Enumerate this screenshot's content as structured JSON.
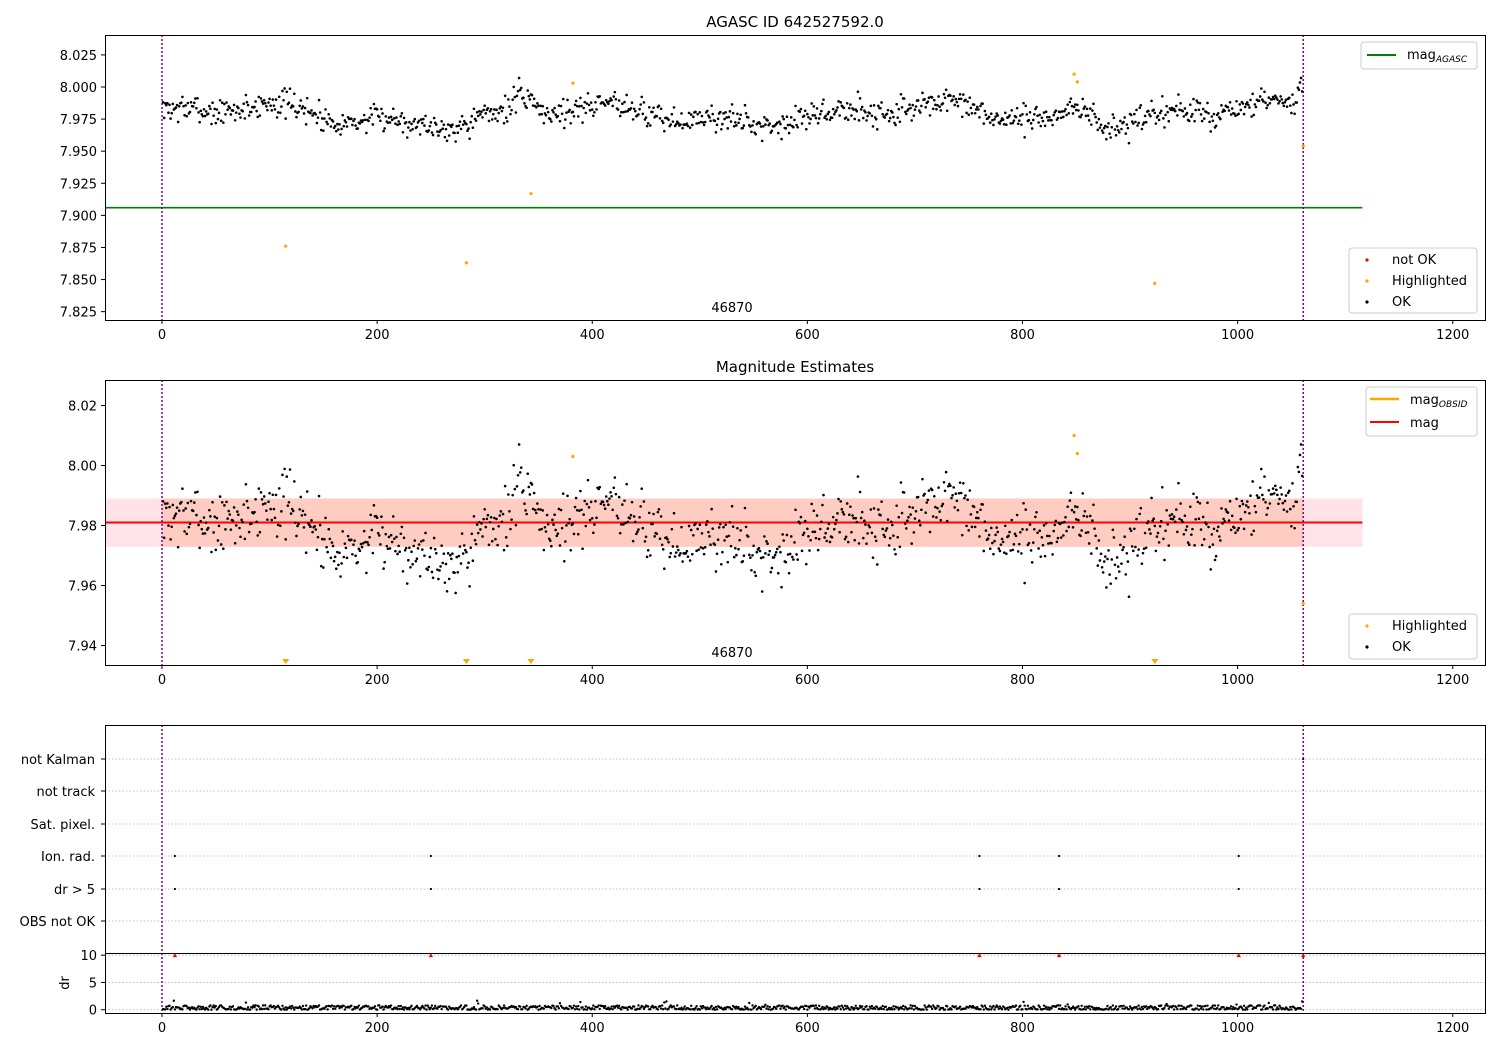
{
  "chart_data": [
    {
      "type": "scatter",
      "title": "AGASC ID 642527592.0",
      "xlabel": "",
      "ylabel": "",
      "xlim": [
        -53,
        1230
      ],
      "ylim": [
        7.8185,
        8.0405
      ],
      "xticks": [
        0,
        200,
        400,
        600,
        800,
        1000,
        1200
      ],
      "xtick_labels": [
        "0",
        "200",
        "400",
        "600",
        "800",
        "1000",
        "1200"
      ],
      "yticks": [
        7.825,
        7.85,
        7.875,
        7.9,
        7.925,
        7.95,
        7.975,
        8.0,
        8.025
      ],
      "ytick_labels": [
        "7.825",
        "7.850",
        "7.875",
        "7.900",
        "7.925",
        "7.950",
        "7.975",
        "8.000",
        "8.025"
      ],
      "vlines": [
        0,
        1061
      ],
      "vline_color": "#800080",
      "annotation": "46870",
      "annotation_x": 530,
      "grid": false,
      "lines": [
        {
          "name": "mag",
          "subscript": "AGASC",
          "y": 7.906,
          "x_range": [
            -53,
            1116
          ],
          "color": "#008000"
        }
      ],
      "legends": [
        {
          "placement": "top-right",
          "entries": [
            {
              "label": "mag",
              "sub": "AGASC",
              "kind": "line",
              "color": "#008000"
            }
          ]
        },
        {
          "placement": "bottom-right",
          "entries": [
            {
              "label": "not OK",
              "kind": "dot",
              "color": "#ff0000"
            },
            {
              "label": "Highlighted",
              "kind": "dot",
              "color": "#ffa500"
            },
            {
              "label": "OK",
              "kind": "dot",
              "color": "#000000"
            }
          ]
        }
      ],
      "series": [
        {
          "name": "OK",
          "color": "#000000",
          "model": "mag_baseline",
          "n": 1060,
          "x_range": [
            1,
            1060
          ]
        },
        {
          "name": "Highlighted",
          "color": "#ffa500",
          "x": [
            115,
            283,
            343,
            382,
            848,
            851,
            923,
            1061
          ],
          "y": [
            7.876,
            7.863,
            7.917,
            8.003,
            8.01,
            8.004,
            7.847,
            7.954
          ]
        }
      ]
    },
    {
      "type": "scatter",
      "title": "Magnitude Estimates",
      "xlabel": "",
      "ylabel": "",
      "xlim": [
        -53,
        1230
      ],
      "ylim": [
        7.9335,
        8.0285
      ],
      "xticks": [
        0,
        200,
        400,
        600,
        800,
        1000,
        1200
      ],
      "xtick_labels": [
        "0",
        "200",
        "400",
        "600",
        "800",
        "1000",
        "1200"
      ],
      "yticks": [
        7.94,
        7.96,
        7.98,
        8.0,
        8.02
      ],
      "ytick_labels": [
        "7.94",
        "7.96",
        "7.98",
        "8.00",
        "8.02"
      ],
      "vlines": [
        0,
        1061
      ],
      "vline_color": "#800080",
      "annotation": "46870",
      "annotation_x": 530,
      "grid": false,
      "bands": [
        {
          "y_range": [
            7.9729,
            7.989
          ],
          "x_range": [
            -53,
            1116
          ],
          "color": "#ffc0cb",
          "opacity": 0.45
        },
        {
          "y_range": [
            7.9729,
            7.989
          ],
          "x_range": [
            0,
            1061
          ],
          "color": "#ffa07a",
          "opacity": 0.35
        }
      ],
      "lines": [
        {
          "name": "mag",
          "y": 7.981,
          "x_range": [
            -53,
            1116
          ],
          "color": "#ff0000"
        }
      ],
      "outlier_markers": {
        "x": [
          115,
          283,
          343,
          923
        ],
        "color": "#ffa500",
        "shape": "triangle-down"
      },
      "legends": [
        {
          "placement": "top-right",
          "entries": [
            {
              "label": "mag",
              "sub": "OBSID",
              "kind": "line",
              "color": "#ffa500"
            },
            {
              "label": "mag",
              "kind": "line",
              "color": "#ff0000"
            }
          ]
        },
        {
          "placement": "bottom-right",
          "entries": [
            {
              "label": "Highlighted",
              "kind": "dot",
              "color": "#ffa500"
            },
            {
              "label": "OK",
              "kind": "dot",
              "color": "#000000"
            }
          ]
        }
      ],
      "series": [
        {
          "name": "OK",
          "color": "#000000",
          "model": "mag_baseline",
          "n": 1060,
          "x_range": [
            1,
            1060
          ]
        },
        {
          "name": "Highlighted",
          "color": "#ffa500",
          "x": [
            382,
            848,
            851,
            1061
          ],
          "y": [
            8.003,
            8.01,
            8.004,
            7.954
          ]
        }
      ]
    },
    {
      "type": "scatter",
      "title": "",
      "xlabel": "",
      "ylabel": "",
      "xlim": [
        -53,
        1230
      ],
      "categories": [
        "not Kalman",
        "not track",
        "Sat. pixel.",
        "Ion. rad.",
        "dr > 5",
        "OBS not OK"
      ],
      "grid": true,
      "vlines": [
        0,
        1061
      ],
      "vline_color": "#800080",
      "series": [
        {
          "name": "Ion. rad.",
          "x": [
            12,
            250,
            760,
            834,
            1001
          ]
        },
        {
          "name": "dr > 5",
          "x": [
            12,
            250,
            760,
            834,
            1001
          ]
        },
        {
          "name": "not Kalman",
          "x": [
            1061
          ]
        }
      ]
    },
    {
      "type": "scatter",
      "title": "",
      "xlabel": "",
      "ylabel": "dr",
      "xlim": [
        -53,
        1230
      ],
      "ylim": [
        -0.6,
        10.4
      ],
      "yticks": [
        0,
        5,
        10
      ],
      "ytick_labels": [
        "0",
        "5",
        "10"
      ],
      "xticks": [
        0,
        200,
        400,
        600,
        800,
        1000,
        1200
      ],
      "xtick_labels": [
        "0",
        "200",
        "400",
        "600",
        "800",
        "1000",
        "1200"
      ],
      "grid": true,
      "vlines": [
        0,
        1061
      ],
      "vline_color": "#800080",
      "series": [
        {
          "name": "dr",
          "color": "#000000",
          "model": "dr_noise",
          "n": 1060,
          "x_range": [
            1,
            1060
          ]
        },
        {
          "name": "dr > 5",
          "color": "#ff0000",
          "shape": "triangle-up",
          "x": [
            12,
            250,
            760,
            834,
            1001,
            1061
          ],
          "y": [
            10,
            10,
            10,
            10,
            10,
            10
          ]
        }
      ]
    }
  ]
}
